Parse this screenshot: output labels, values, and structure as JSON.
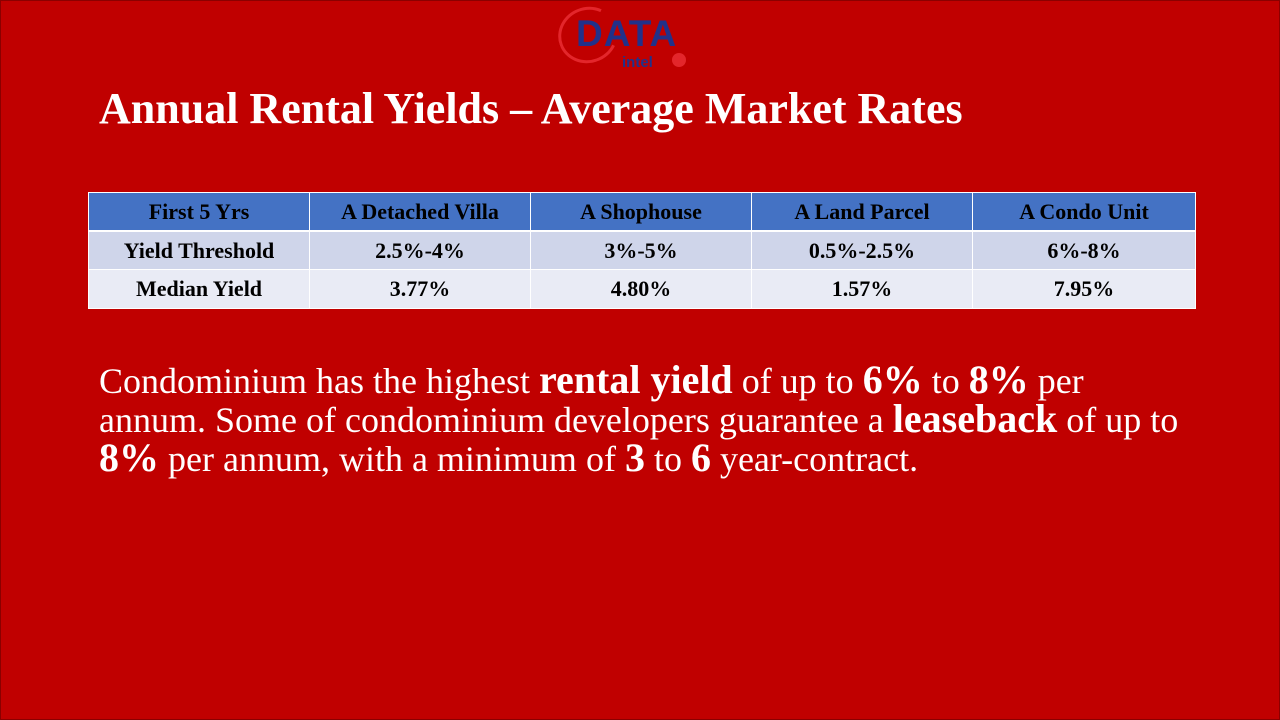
{
  "logo": {
    "word": "DATA",
    "sub": "intel"
  },
  "title": "Annual Rental Yields – Average Market Rates",
  "table": {
    "headers": [
      "First 5 Yrs",
      "A Detached Villa",
      "A Shophouse",
      "A Land Parcel",
      "A Condo Unit"
    ],
    "rows": [
      [
        "Yield Threshold",
        "2.5%-4%",
        "3%-5%",
        "0.5%-2.5%",
        "6%-8%"
      ],
      [
        "Median Yield",
        "3.77%",
        "4.80%",
        "1.57%",
        "7.95%"
      ]
    ]
  },
  "paragraph": {
    "p1": "Condominium has the highest ",
    "b1": "rental yield",
    "p2": " of up to ",
    "b2": "6%",
    "p3": " to ",
    "b3": "8%",
    "p4": " per annum. Some of condominium developers guarantee a ",
    "b4": "leaseback",
    "p5": " of up to ",
    "b5": "8%",
    "p6": " per annum, with a minimum of ",
    "b6": "3",
    "p7": " to ",
    "b7": "6",
    "p8": " year-contract."
  },
  "colors": {
    "background": "#c00000",
    "header_fill": "#4472c4",
    "row_fill_1": "#cfd5ea",
    "row_fill_2": "#e9ebf5",
    "logo_blue": "#22318a",
    "logo_red": "#e3262b"
  }
}
